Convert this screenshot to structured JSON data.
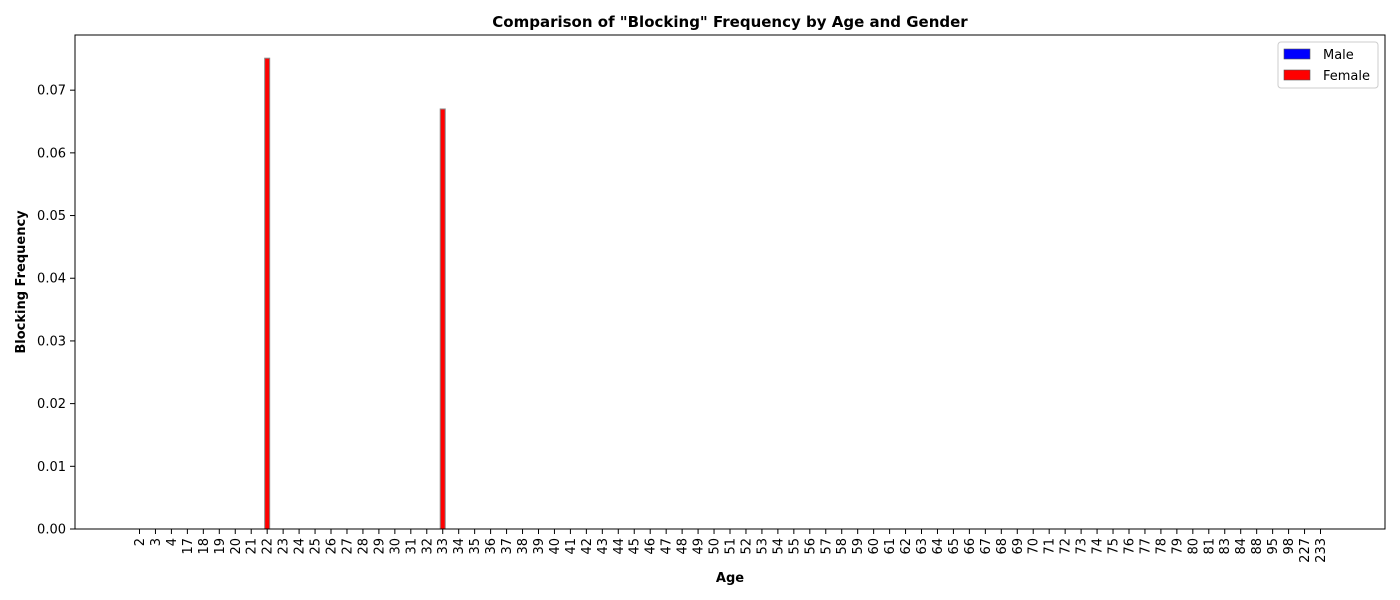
{
  "chart_data": {
    "type": "bar",
    "title": "Comparison of \"Blocking\" Frequency by Age and Gender",
    "xlabel": "Age",
    "ylabel": "Blocking Frequency",
    "ylim": [
      0,
      0.0788
    ],
    "yticks": [
      "0.00",
      "0.01",
      "0.02",
      "0.03",
      "0.04",
      "0.05",
      "0.06",
      "0.07"
    ],
    "legend_position": "top-right",
    "categories": [
      "2",
      "3",
      "4",
      "17",
      "18",
      "19",
      "20",
      "21",
      "22",
      "23",
      "24",
      "25",
      "26",
      "27",
      "28",
      "29",
      "30",
      "31",
      "32",
      "33",
      "34",
      "35",
      "36",
      "37",
      "38",
      "39",
      "40",
      "41",
      "42",
      "43",
      "44",
      "45",
      "46",
      "47",
      "48",
      "49",
      "50",
      "51",
      "52",
      "53",
      "54",
      "55",
      "56",
      "57",
      "58",
      "59",
      "60",
      "61",
      "62",
      "63",
      "64",
      "65",
      "66",
      "67",
      "68",
      "69",
      "70",
      "71",
      "72",
      "73",
      "74",
      "75",
      "76",
      "77",
      "78",
      "79",
      "80",
      "81",
      "83",
      "84",
      "88",
      "95",
      "98",
      "227",
      "233"
    ],
    "series": [
      {
        "name": "Male",
        "color": "#0000ff",
        "values": [
          0,
          0,
          0,
          0,
          0,
          0,
          0,
          0,
          0,
          0,
          0,
          0,
          0,
          0,
          0,
          0,
          0,
          0,
          0,
          0,
          0,
          0,
          0,
          0,
          0,
          0,
          0,
          0,
          0,
          0,
          0,
          0,
          0,
          0,
          0,
          0,
          0,
          0,
          0,
          0,
          0,
          0,
          0,
          0,
          0,
          0,
          0,
          0,
          0,
          0,
          0,
          0,
          0,
          0,
          0,
          0,
          0,
          0,
          0,
          0,
          0,
          0,
          0,
          0,
          0,
          0,
          0,
          0,
          0,
          0,
          0,
          0,
          0,
          0,
          0
        ]
      },
      {
        "name": "Female",
        "color": "#ff0000",
        "values": [
          0,
          0,
          0,
          0,
          0,
          0,
          0,
          0,
          0.0751,
          0,
          0,
          0,
          0,
          0,
          0,
          0,
          0,
          0,
          0,
          0.067,
          0,
          0,
          0,
          0,
          0,
          0,
          0,
          0,
          0,
          0,
          0,
          0,
          0,
          0,
          0,
          0,
          0,
          0,
          0,
          0,
          0,
          0,
          0,
          0,
          0,
          0,
          0,
          0,
          0,
          0,
          0,
          0,
          0,
          0,
          0,
          0,
          0,
          0,
          0,
          0,
          0,
          0,
          0,
          0,
          0,
          0,
          0,
          0,
          0,
          0,
          0,
          0,
          0,
          0,
          0
        ]
      }
    ]
  }
}
